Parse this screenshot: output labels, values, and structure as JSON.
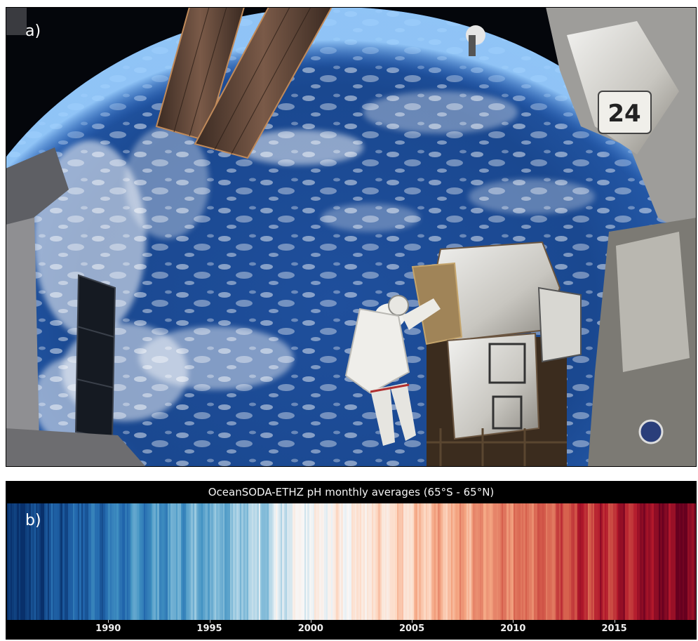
{
  "panel_a": {
    "label": "a)",
    "module_number": "24"
  },
  "panel_b": {
    "label": "b)",
    "title": "OceanSODA-ETHZ pH monthly averages (65°S - 65°N)",
    "colormap": [
      "#08306b",
      "#2166ac",
      "#4393c3",
      "#92c5de",
      "#f7f7f7",
      "#fddbc7",
      "#f4a582",
      "#d6604d",
      "#b2182b",
      "#67001f"
    ],
    "axis": {
      "start_year": 1985,
      "end_year": 2019,
      "ticks": [
        "1990",
        "1995",
        "2000",
        "2005",
        "2010",
        "2015"
      ]
    }
  }
}
